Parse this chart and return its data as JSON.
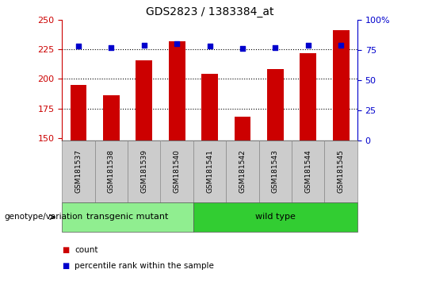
{
  "title": "GDS2823 / 1383384_at",
  "samples": [
    "GSM181537",
    "GSM181538",
    "GSM181539",
    "GSM181540",
    "GSM181541",
    "GSM181542",
    "GSM181543",
    "GSM181544",
    "GSM181545"
  ],
  "counts": [
    195,
    186,
    216,
    232,
    204,
    168,
    208,
    222,
    241
  ],
  "percentile_ranks": [
    78,
    77,
    79,
    80,
    78,
    76,
    77,
    79,
    79
  ],
  "groups": [
    "transgenic mutant",
    "transgenic mutant",
    "transgenic mutant",
    "transgenic mutant",
    "wild type",
    "wild type",
    "wild type",
    "wild type",
    "wild type"
  ],
  "tm_color": "#90EE90",
  "wt_color": "#32CD32",
  "bar_color": "#CC0000",
  "dot_color": "#0000CC",
  "ylim_left": [
    148,
    250
  ],
  "ylim_right": [
    0,
    100
  ],
  "yticks_left": [
    150,
    175,
    200,
    225,
    250
  ],
  "yticks_right": [
    0,
    25,
    50,
    75,
    100
  ],
  "grid_values": [
    175,
    200,
    225
  ],
  "right_tick_labels": [
    "0",
    "25",
    "50",
    "75",
    "100%"
  ]
}
